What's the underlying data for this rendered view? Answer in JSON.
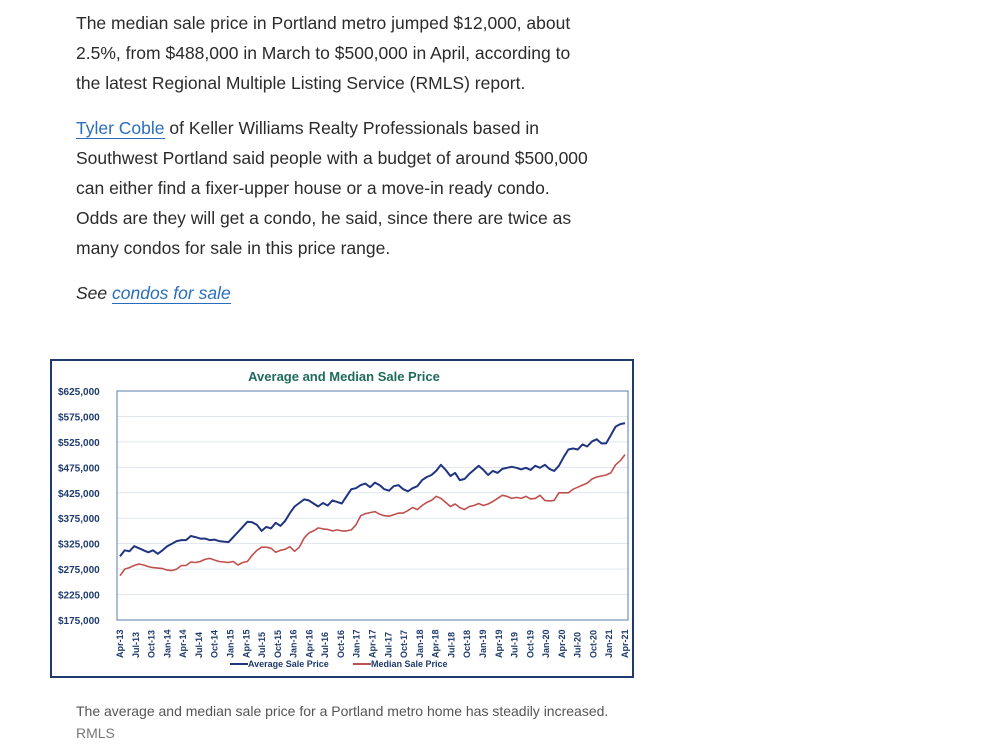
{
  "article": {
    "p1": "The median sale price in Portland metro jumped $12,000, about 2.5%, from $488,000 in March to $500,000 in April, according to the latest Regional Multiple Listing Service (RMLS) report.",
    "p2_link": "Tyler Coble",
    "p2_rest": " of Keller Williams Realty Professionals based in Southwest Portland said people with a budget of around $500,000 can either find a fixer-upper house or a move-in ready condo. Odds are they will get a condo, he said, since there are twice as many condos for sale in this price range.",
    "see_prefix": "See ",
    "see_link": "condos for sale"
  },
  "caption": {
    "text": "The average and median sale price for a Portland metro home has steadily increased.",
    "credit": "RMLS"
  },
  "colors": {
    "average": "#1f3580",
    "median": "#c0504d",
    "title": "#1f6b5b",
    "axis_text": "#1f3b6e",
    "plot_border": "#5b7ba8",
    "grid": "#cfd8e6"
  },
  "chart_data": {
    "type": "line",
    "title": "Average and Median Sale Price",
    "xlabel": "",
    "ylabel": "",
    "ylim": [
      175000,
      625000
    ],
    "y_ticks": [
      "$625,000",
      "$575,000",
      "$525,000",
      "$475,000",
      "$425,000",
      "$375,000",
      "$325,000",
      "$275,000",
      "$225,000",
      "$175,000"
    ],
    "x_tick_labels": [
      "Apr-13",
      "Jul-13",
      "Oct-13",
      "Jan-14",
      "Apr-14",
      "Jul-14",
      "Oct-14",
      "Jan-15",
      "Apr-15",
      "Jul-15",
      "Oct-15",
      "Jan-16",
      "Apr-16",
      "Jul-16",
      "Oct-16",
      "Jan-17",
      "Apr-17",
      "Jul-17",
      "Oct-17",
      "Jan-18",
      "Apr-18",
      "Jul-18",
      "Oct-18",
      "Jan-19",
      "Apr-19",
      "Jul-19",
      "Oct-19",
      "Jan-20",
      "Apr-20",
      "Jul-20",
      "Oct-20",
      "Jan-21",
      "Apr-21"
    ],
    "grid": true,
    "legend_position": "bottom",
    "series": [
      {
        "name": "Average Sale Price",
        "values": [
          300000,
          312000,
          310000,
          320000,
          316000,
          312000,
          308000,
          312000,
          305000,
          312000,
          320000,
          325000,
          330000,
          332000,
          332000,
          340000,
          338000,
          335000,
          335000,
          332000,
          333000,
          330000,
          329000,
          328000,
          338000,
          348000,
          358000,
          368000,
          367000,
          362000,
          350000,
          358000,
          355000,
          366000,
          360000,
          370000,
          385000,
          398000,
          405000,
          412000,
          410000,
          404000,
          398000,
          405000,
          400000,
          410000,
          407000,
          404000,
          418000,
          432000,
          434000,
          440000,
          443000,
          436000,
          445000,
          440000,
          432000,
          429000,
          438000,
          440000,
          432000,
          428000,
          434000,
          438000,
          450000,
          456000,
          460000,
          468000,
          480000,
          470000,
          458000,
          464000,
          450000,
          452000,
          462000,
          470000,
          478000,
          470000,
          460000,
          468000,
          464000,
          472000,
          474000,
          476000,
          474000,
          471000,
          474000,
          470000,
          478000,
          474000,
          480000,
          472000,
          468000,
          478000,
          495000,
          510000,
          512000,
          510000,
          520000,
          516000,
          526000,
          530000,
          522000,
          522000,
          538000,
          555000,
          560000,
          562000
        ]
      },
      {
        "name": "Median Sale Price",
        "values": [
          262000,
          275000,
          278000,
          282000,
          285000,
          283000,
          280000,
          278000,
          277000,
          276000,
          273000,
          272000,
          275000,
          282000,
          282000,
          289000,
          288000,
          290000,
          294000,
          296000,
          293000,
          290000,
          289000,
          288000,
          290000,
          283000,
          288000,
          290000,
          302000,
          312000,
          318000,
          318000,
          316000,
          308000,
          312000,
          314000,
          319000,
          310000,
          318000,
          336000,
          346000,
          350000,
          356000,
          354000,
          353000,
          350000,
          352000,
          350000,
          350000,
          352000,
          362000,
          380000,
          384000,
          386000,
          388000,
          383000,
          380000,
          379000,
          382000,
          385000,
          385000,
          390000,
          396000,
          392000,
          400000,
          406000,
          410000,
          418000,
          414000,
          406000,
          398000,
          403000,
          396000,
          392000,
          398000,
          400000,
          404000,
          400000,
          403000,
          408000,
          414000,
          420000,
          418000,
          414000,
          416000,
          414000,
          418000,
          413000,
          414000,
          420000,
          410000,
          409000,
          410000,
          425000,
          425000,
          425000,
          432000,
          436000,
          440000,
          444000,
          452000,
          456000,
          458000,
          460000,
          464000,
          480000,
          488000,
          500000
        ]
      }
    ]
  }
}
